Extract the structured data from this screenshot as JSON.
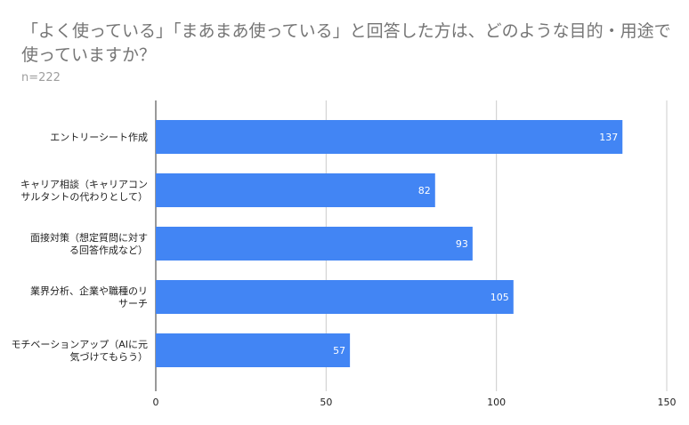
{
  "chart_data": {
    "type": "bar",
    "orientation": "horizontal",
    "title": "「よく使っている」「まあまあ使っている」と回答した方は、どのような目的・用途で使っていますか？",
    "subtitle": "n=222",
    "categories": [
      [
        "エントリーシート作成"
      ],
      [
        "キャリア相談（キャリアコン",
        "サルタントの代わりとして）"
      ],
      [
        "面接対策（想定質問に対す",
        "る回答作成など）"
      ],
      [
        "業界分析、企業や職種のリ",
        "サーチ"
      ],
      [
        "モチベーションアップ（AIに元",
        "気づけてもらう）"
      ]
    ],
    "values": [
      137,
      82,
      93,
      105,
      57
    ],
    "xlim": [
      0,
      150
    ],
    "xticks": [
      0,
      50,
      100,
      150
    ],
    "grid": true,
    "bar_color": "#4285f4",
    "data_labels": true
  }
}
